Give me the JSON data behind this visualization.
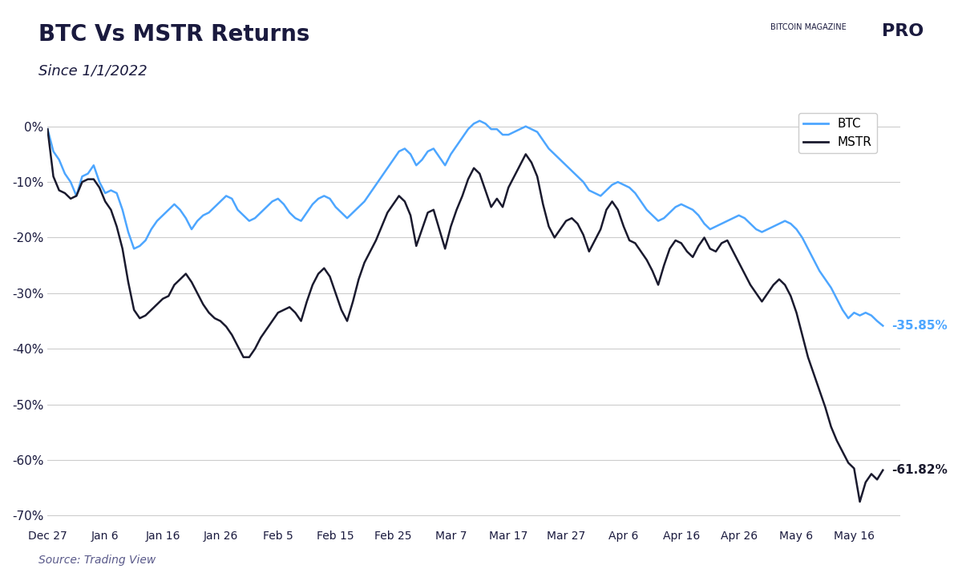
{
  "title": "BTC Vs MSTR Returns",
  "subtitle": "Since 1/1/2022",
  "source": "Source: Trading View",
  "btc_end_label": "-35.85%",
  "mstr_end_label": "-61.82%",
  "btc_color": "#4da6ff",
  "mstr_color": "#1a1a2e",
  "background_color": "#ffffff",
  "title_color": "#1a1a3e",
  "ylim": [
    -72,
    5
  ],
  "yticks": [
    0,
    -10,
    -20,
    -30,
    -40,
    -50,
    -60,
    -70
  ],
  "ytick_labels": [
    "0%",
    "-10%",
    "-20%",
    "-30%",
    "-40%",
    "-50%",
    "-60%",
    "-70%"
  ],
  "x_tick_labels": [
    "Dec 27",
    "Jan 6",
    "Jan 16",
    "Jan 26",
    "Feb 5",
    "Feb 15",
    "Feb 25",
    "Mar 7",
    "Mar 17",
    "Mar 27",
    "Apr 6",
    "Apr 16",
    "Apr 26",
    "May 6",
    "May 16"
  ],
  "btc_data": [
    -0.5,
    -4.5,
    -6.0,
    -8.5,
    -10.0,
    -12.5,
    -9.0,
    -8.5,
    -7.0,
    -10.0,
    -12.0,
    -11.5,
    -12.0,
    -15.0,
    -19.0,
    -22.0,
    -21.5,
    -20.5,
    -18.5,
    -17.0,
    -16.0,
    -15.0,
    -14.0,
    -15.0,
    -16.5,
    -18.5,
    -17.0,
    -16.0,
    -15.5,
    -14.5,
    -13.5,
    -12.5,
    -13.0,
    -15.0,
    -16.0,
    -17.0,
    -16.5,
    -15.5,
    -14.5,
    -13.5,
    -13.0,
    -14.0,
    -15.5,
    -16.5,
    -17.0,
    -15.5,
    -14.0,
    -13.0,
    -12.5,
    -13.0,
    -14.5,
    -15.5,
    -16.5,
    -15.5,
    -14.5,
    -13.5,
    -12.0,
    -10.5,
    -9.0,
    -7.5,
    -6.0,
    -4.5,
    -4.0,
    -5.0,
    -7.0,
    -6.0,
    -4.5,
    -4.0,
    -5.5,
    -7.0,
    -5.0,
    -3.5,
    -2.0,
    -0.5,
    0.5,
    1.0,
    0.5,
    -0.5,
    -0.5,
    -1.5,
    -1.5,
    -1.0,
    -0.5,
    0.0,
    -0.5,
    -1.0,
    -2.5,
    -4.0,
    -5.0,
    -6.0,
    -7.0,
    -8.0,
    -9.0,
    -10.0,
    -11.5,
    -12.0,
    -12.5,
    -11.5,
    -10.5,
    -10.0,
    -10.5,
    -11.0,
    -12.0,
    -13.5,
    -15.0,
    -16.0,
    -17.0,
    -16.5,
    -15.5,
    -14.5,
    -14.0,
    -14.5,
    -15.0,
    -16.0,
    -17.5,
    -18.5,
    -18.0,
    -17.5,
    -17.0,
    -16.5,
    -16.0,
    -16.5,
    -17.5,
    -18.5,
    -19.0,
    -18.5,
    -18.0,
    -17.5,
    -17.0,
    -17.5,
    -18.5,
    -20.0,
    -22.0,
    -24.0,
    -26.0,
    -27.5,
    -29.0,
    -31.0,
    -33.0,
    -34.5,
    -33.5,
    -34.0,
    -33.5,
    -34.0,
    -35.0,
    -35.85
  ],
  "mstr_data": [
    -0.5,
    -9.0,
    -11.5,
    -12.0,
    -13.0,
    -12.5,
    -10.0,
    -9.5,
    -9.5,
    -11.0,
    -13.5,
    -15.0,
    -18.0,
    -22.0,
    -28.0,
    -33.0,
    -34.5,
    -34.0,
    -33.0,
    -32.0,
    -31.0,
    -30.5,
    -28.5,
    -27.5,
    -26.5,
    -28.0,
    -30.0,
    -32.0,
    -33.5,
    -34.5,
    -35.0,
    -36.0,
    -37.5,
    -39.5,
    -41.5,
    -41.5,
    -40.0,
    -38.0,
    -36.5,
    -35.0,
    -33.5,
    -33.0,
    -32.5,
    -33.5,
    -35.0,
    -31.5,
    -28.5,
    -26.5,
    -25.5,
    -27.0,
    -30.0,
    -33.0,
    -35.0,
    -31.5,
    -27.5,
    -24.5,
    -22.5,
    -20.5,
    -18.0,
    -15.5,
    -14.0,
    -12.5,
    -13.5,
    -16.0,
    -21.5,
    -18.5,
    -15.5,
    -15.0,
    -18.5,
    -22.0,
    -18.0,
    -15.0,
    -12.5,
    -9.5,
    -7.5,
    -8.5,
    -11.5,
    -14.5,
    -13.0,
    -14.5,
    -11.0,
    -9.0,
    -7.0,
    -5.0,
    -6.5,
    -9.0,
    -14.0,
    -18.0,
    -20.0,
    -18.5,
    -17.0,
    -16.5,
    -17.5,
    -19.5,
    -22.5,
    -20.5,
    -18.5,
    -15.0,
    -13.5,
    -15.0,
    -18.0,
    -20.5,
    -21.0,
    -22.5,
    -24.0,
    -26.0,
    -28.5,
    -25.0,
    -22.0,
    -20.5,
    -21.0,
    -22.5,
    -23.5,
    -21.5,
    -20.0,
    -22.0,
    -22.5,
    -21.0,
    -20.5,
    -22.5,
    -24.5,
    -26.5,
    -28.5,
    -30.0,
    -31.5,
    -30.0,
    -28.5,
    -27.5,
    -28.5,
    -30.5,
    -33.5,
    -37.5,
    -41.5,
    -44.5,
    -47.5,
    -50.5,
    -54.0,
    -56.5,
    -58.5,
    -60.5,
    -61.5,
    -67.5,
    -64.0,
    -62.5,
    -63.5,
    -61.82
  ]
}
